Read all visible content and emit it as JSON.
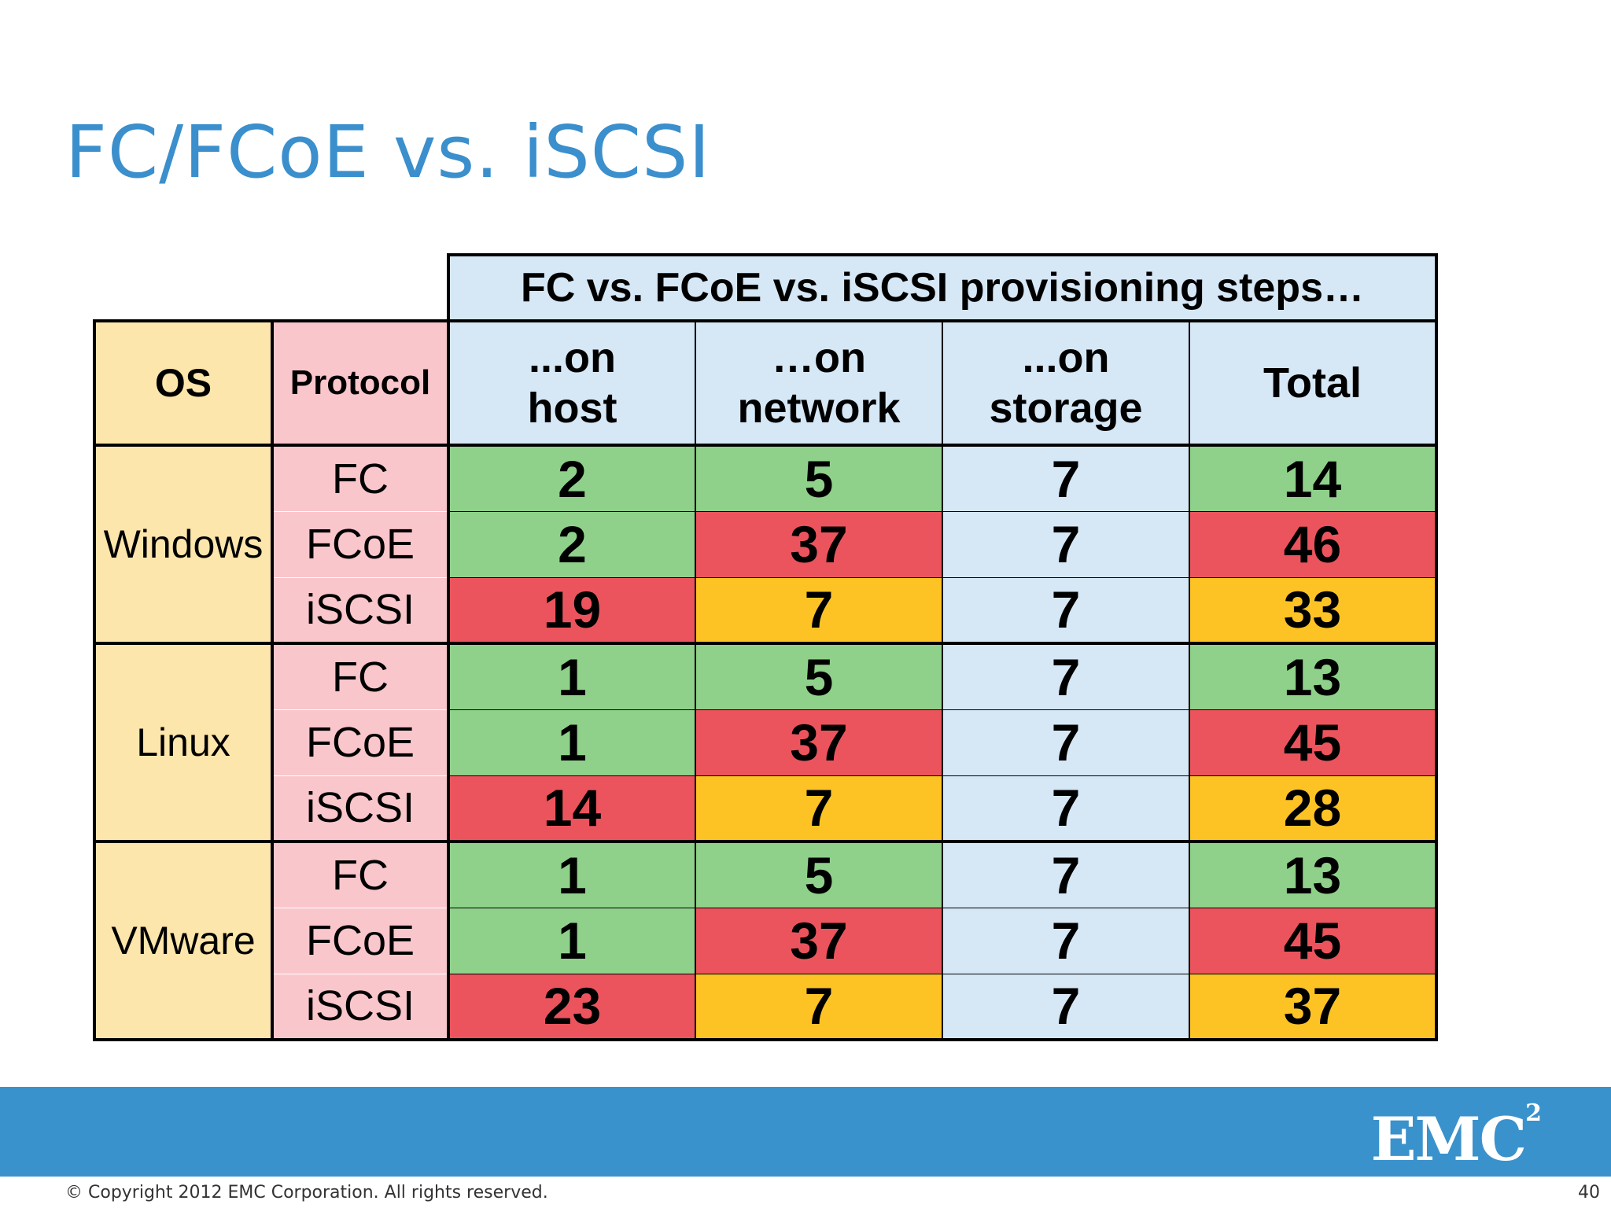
{
  "slide": {
    "title": "FC/FCoE vs. iSCSI",
    "copyright": "© Copyright 2012 EMC Corporation. All rights reserved.",
    "page_number": "40",
    "logo_text": "EMC",
    "logo_superscript": "2"
  },
  "table": {
    "banner": "FC vs. FCoE vs. iSCSI provisioning steps…",
    "headers": {
      "os": "OS",
      "protocol": "Protocol",
      "host_line1": "...on",
      "host_line2": "host",
      "network_line1": "…on",
      "network_line2": "network",
      "storage_line1": "...on",
      "storage_line2": "storage",
      "total": "Total"
    },
    "groups": [
      {
        "os": "Windows",
        "rows": [
          {
            "protocol": "FC",
            "host": "2",
            "network": "5",
            "storage": "7",
            "total": "14"
          },
          {
            "protocol": "FCoE",
            "host": "2",
            "network": "37",
            "storage": "7",
            "total": "46"
          },
          {
            "protocol": "iSCSI",
            "host": "19",
            "network": "7",
            "storage": "7",
            "total": "33"
          }
        ]
      },
      {
        "os": "Linux",
        "rows": [
          {
            "protocol": "FC",
            "host": "1",
            "network": "5",
            "storage": "7",
            "total": "13"
          },
          {
            "protocol": "FCoE",
            "host": "1",
            "network": "37",
            "storage": "7",
            "total": "45"
          },
          {
            "protocol": "iSCSI",
            "host": "14",
            "network": "7",
            "storage": "7",
            "total": "28"
          }
        ]
      },
      {
        "os": "VMware",
        "rows": [
          {
            "protocol": "FC",
            "host": "1",
            "network": "5",
            "storage": "7",
            "total": "13"
          },
          {
            "protocol": "FCoE",
            "host": "1",
            "network": "37",
            "storage": "7",
            "total": "45"
          },
          {
            "protocol": "iSCSI",
            "host": "23",
            "network": "7",
            "storage": "7",
            "total": "37"
          }
        ]
      }
    ],
    "colors": {
      "os_bg": "#FDE6AB",
      "protocol_bg": "#F9C6CB",
      "header_bg": "#D6E7F6",
      "good": "#8FD18A",
      "bad": "#EC545D",
      "medium": "#FDC324",
      "neutral": "#D6E7F6"
    }
  }
}
